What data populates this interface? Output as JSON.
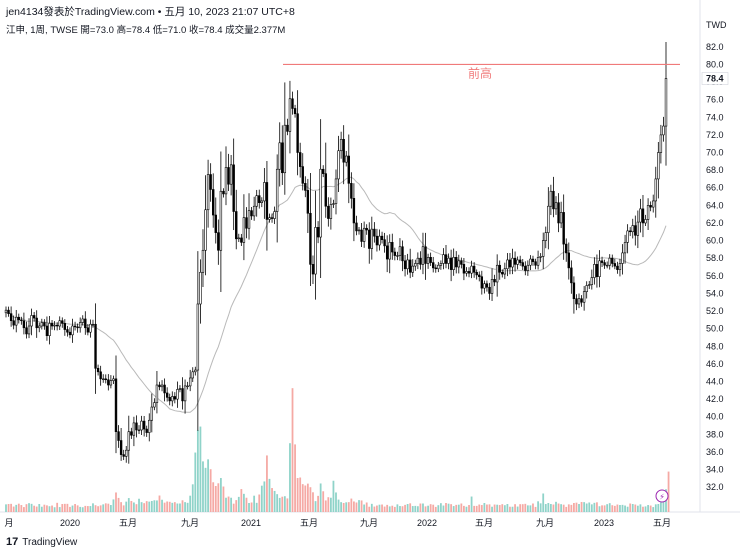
{
  "header": {
    "publisher": "jen4134發表於TradingView.com • 五月 10, 2023 21:07 UTC+8",
    "legend": "江申, 1周, TWSE  開=73.0  高=78.4  低=71.0  收=78.4  成交量2.377M"
  },
  "currency": "TWD",
  "brand": {
    "logo": "17",
    "name": "TradingView"
  },
  "chart_data": {
    "type": "candlestick",
    "interval": "1 week",
    "y_ticks": [
      "82.0",
      "80.0",
      "78.0",
      "76.0",
      "74.0",
      "72.0",
      "70.0",
      "68.0",
      "66.0",
      "64.0",
      "62.0",
      "60.0",
      "58.0",
      "56.0",
      "54.0",
      "52.0",
      "50.0",
      "48.0",
      "46.0",
      "44.0",
      "42.0",
      "40.0",
      "38.0",
      "36.0",
      "34.0",
      "32.0"
    ],
    "x_ticks": [
      "月",
      "2020",
      "五月",
      "九月",
      "2021",
      "五月",
      "九月",
      "2022",
      "五月",
      "九月",
      "2023",
      "五月"
    ],
    "ylim": [
      31,
      83
    ],
    "last_price": "78.4",
    "annotations": [
      {
        "text": "前高",
        "level": 80.0,
        "color": "#f07a7a"
      }
    ],
    "colors": {
      "up": "#ffffff",
      "down": "#000000",
      "volume_up": "#8fd3c9",
      "volume_down": "#f5a9a4",
      "ma": "#b9b9b9",
      "resistance": "#f07a7a"
    },
    "close": [
      52.1,
      51.7,
      50.9,
      50.4,
      51.3,
      51.0,
      50.9,
      50.1,
      49.4,
      50.3,
      51.5,
      51.2,
      50.1,
      50.3,
      50.7,
      50.3,
      49.2,
      50.6,
      50.3,
      50.4,
      50.3,
      50.9,
      50.6,
      49.9,
      49.6,
      49.3,
      50.3,
      50.2,
      50.1,
      50.7,
      51.1,
      50.1,
      49.6,
      50.5,
      50.5,
      45.5,
      45.1,
      44.3,
      44.3,
      44.2,
      43.6,
      44.1,
      44.3,
      38.3,
      37.3,
      35.7,
      35.5,
      36.2,
      38.3,
      37.9,
      39.3,
      38.5,
      38.5,
      39.5,
      38.6,
      38.2,
      39.6,
      41.1,
      41.6,
      43.6,
      43.4,
      43.6,
      42.7,
      42.2,
      41.8,
      42.3,
      42.0,
      43.1,
      43.2,
      41.8,
      43.5,
      43.5,
      44.4,
      45.1,
      45.3,
      52.8,
      56.4,
      58.9,
      63.5,
      67.5,
      65.8,
      62.9,
      60.9,
      58.9,
      65.6,
      65.3,
      68.3,
      66.4,
      68.6,
      63.3,
      60.2,
      60.3,
      59.8,
      62.6,
      61.4,
      63.4,
      62.8,
      63.9,
      65.1,
      64.3,
      64.5,
      66.6,
      62.4,
      62.6,
      62.5,
      63.3,
      68.1,
      71.1,
      67.7,
      73.1,
      72.4,
      76.1,
      75.0,
      74.4,
      70.0,
      68.4,
      66.5,
      65.7,
      63.1,
      57.3,
      56.2,
      61.5,
      60.4,
      68.1,
      67.6,
      63.9,
      62.5,
      64.1,
      64.2,
      67.0,
      70.2,
      71.5,
      68.9,
      69.6,
      66.5,
      64.8,
      62.0,
      61.1,
      61.2,
      59.9,
      61.4,
      61.2,
      59.1,
      61.3,
      60.5,
      59.5,
      60.5,
      60.1,
      59.4,
      57.9,
      59.8,
      58.7,
      58.3,
      58.3,
      59.3,
      57.7,
      56.8,
      57.8,
      56.4,
      57.1,
      57.4,
      58.0,
      57.3,
      59.3,
      57.4,
      58.1,
      57.5,
      56.9,
      56.8,
      57.2,
      57.4,
      58.4,
      57.4,
      58.0,
      56.7,
      58.1,
      57.0,
      57.7,
      57.3,
      56.3,
      56.5,
      56.3,
      57.1,
      56.4,
      56.1,
      55.9,
      54.6,
      55.1,
      54.7,
      54.0,
      55.6,
      55.3,
      57.2,
      56.4,
      56.2,
      56.8,
      57.8,
      57.0,
      58.0,
      57.3,
      57.8,
      57.5,
      57.1,
      56.6,
      57.2,
      57.9,
      57.6,
      57.2,
      58.1,
      58.2,
      60.0,
      60.9,
      63.9,
      65.6,
      63.6,
      64.3,
      62.0,
      63.2,
      59.6,
      58.6,
      56.9,
      55.2,
      53.4,
      52.8,
      53.4,
      53.0,
      54.2,
      54.9,
      55.0,
      55.8,
      57.3,
      55.9,
      57.7,
      57.5,
      57.2,
      57.2,
      58.0,
      57.4,
      57.1,
      56.7,
      57.4,
      58.6,
      59.8,
      61.1,
      61.0,
      61.7,
      60.6,
      62.1,
      63.6,
      62.0,
      62.4,
      64.0,
      63.8,
      64.5,
      67.0,
      70.0,
      72.0,
      73.0,
      78.4
    ],
    "volume_m": [
      0.45,
      0.47,
      0.48,
      0.32,
      0.42,
      0.49,
      0.41,
      0.29,
      0.46,
      0.52,
      0.48,
      0.37,
      0.32,
      0.47,
      0.31,
      0.43,
      0.39,
      0.34,
      0.38,
      0.28,
      0.54,
      0.29,
      0.47,
      0.48,
      0.48,
      0.3,
      0.38,
      0.47,
      0.39,
      0.3,
      0.28,
      0.36,
      0.35,
      0.35,
      0.51,
      0.4,
      0.34,
      0.39,
      0.45,
      0.51,
      0.49,
      0.41,
      0.74,
      1.15,
      0.83,
      0.58,
      0.39,
      0.61,
      0.82,
      0.65,
      0.56,
      0.46,
      0.78,
      0.58,
      0.52,
      0.64,
      0.61,
      0.65,
      0.69,
      0.68,
      0.97,
      0.72,
      0.55,
      0.62,
      0.6,
      0.54,
      0.58,
      0.5,
      0.5,
      0.69,
      0.58,
      0.54,
      0.96,
      1.63,
      3.5,
      4.83,
      5.03,
      2.98,
      2.6,
      3.1,
      2.52,
      1.75,
      1.53,
      1.69,
      2.0,
      1.5,
      0.84,
      0.91,
      0.84,
      0.49,
      0.7,
      0.89,
      1.35,
      1.07,
      0.84,
      0.53,
      0.56,
      0.96,
      0.54,
      1.03,
      1.55,
      1.8,
      3.33,
      1.95,
      1.41,
      1.24,
      1.05,
      0.83,
      0.9,
      0.93,
      0.8,
      4.05,
      7.29,
      3.98,
      2.0,
      2.03,
      1.64,
      1.56,
      1.67,
      1.46,
      1.16,
      0.64,
      0.95,
      1.68,
      1.22,
      0.68,
      0.87,
      0.84,
      1.84,
      1.15,
      0.73,
      0.58,
      0.53,
      0.57,
      0.58,
      0.79,
      0.62,
      0.56,
      0.7,
      0.68,
      0.44,
      0.56,
      0.31,
      0.48,
      0.32,
      0.38,
      0.43,
      0.44,
      0.32,
      0.42,
      0.33,
      0.37,
      0.3,
      0.45,
      0.35,
      0.34,
      0.42,
      0.47,
      0.51,
      0.35,
      0.36,
      0.34,
      0.5,
      0.5,
      0.33,
      0.37,
      0.46,
      0.43,
      0.3,
      0.4,
      0.52,
      0.38,
      0.53,
      0.49,
      0.46,
      0.35,
      0.42,
      0.43,
      0.5,
      0.36,
      0.31,
      0.41,
      0.91,
      0.36,
      0.36,
      0.44,
      0.41,
      0.53,
      0.44,
      0.45,
      0.31,
      0.44,
      0.43,
      0.41,
      0.46,
      0.4,
      0.47,
      0.31,
      0.31,
      0.46,
      0.32,
      0.46,
      0.46,
      0.48,
      0.39,
      0.39,
      0.5,
      0.3,
      0.63,
      0.51,
      1.09,
      0.47,
      0.53,
      0.47,
      0.44,
      0.6,
      0.5,
      0.46,
      0.43,
      0.3,
      0.45,
      0.42,
      0.53,
      0.55,
      0.47,
      0.59,
      0.58,
      0.5,
      0.56,
      0.45,
      0.54,
      0.57,
      0.34,
      0.39,
      0.39,
      0.46,
      0.52,
      0.4,
      0.36,
      0.44,
      0.41,
      0.42,
      0.38,
      0.31,
      0.5,
      0.47,
      0.44,
      0.37,
      0.45,
      0.31,
      0.33,
      0.41,
      0.38,
      0.29,
      0.45,
      0.47,
      0.57,
      0.99,
      1.34,
      2.38
    ]
  }
}
